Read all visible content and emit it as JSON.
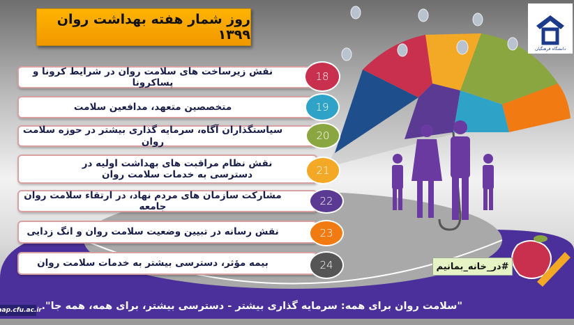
{
  "title": "روز شمار هفته بهداشت روان ۱۳۹۹",
  "items": [
    {
      "day": "18",
      "text": "نقش زیرساخت های سلامت روان در شرایط کرونا و پساکرونا",
      "color": "#c8304e"
    },
    {
      "day": "19",
      "text": "متخصصین متعهد، مدافعین سلامت",
      "color": "#2fa2c8"
    },
    {
      "day": "20",
      "text": "سیاستگذاران آگاه، سرمایه گذاری بیشتر در حوزه سلامت روان",
      "color": "#8aa640"
    },
    {
      "day": "21",
      "text": "نقش نظام مراقبت های بهداشت اولیه در دسترسی به خدمات سلامت روان",
      "color": "#f4a926"
    },
    {
      "day": "22",
      "text": "مشارکت سازمان های مردم نهاد، در ارتقاء سلامت روان جامعه",
      "color": "#5b3a94"
    },
    {
      "day": "23",
      "text": "نقش رسانه در تبیین وضعیت سلامت روان و انگ زدایی",
      "color": "#f27a12"
    },
    {
      "day": "24",
      "text": "بیمه مؤثر، دسترسی بیشتر به خدمات سلامت روان",
      "color": "#555555"
    }
  ],
  "hashtag": "#در_خانه_بمانیم",
  "footer": "\"سلامت روان برای همه: سرمایه گذاری بیشتر - دسترسی بیشتر، برای همه، همه جا\".",
  "site": "taap.cfu.ac.ir",
  "logo_text": "دانشگاه فرهنگیان",
  "colors": {
    "band": "#4b2f9a",
    "title_bg": "#ffb300",
    "family": "#6a3aa0"
  }
}
